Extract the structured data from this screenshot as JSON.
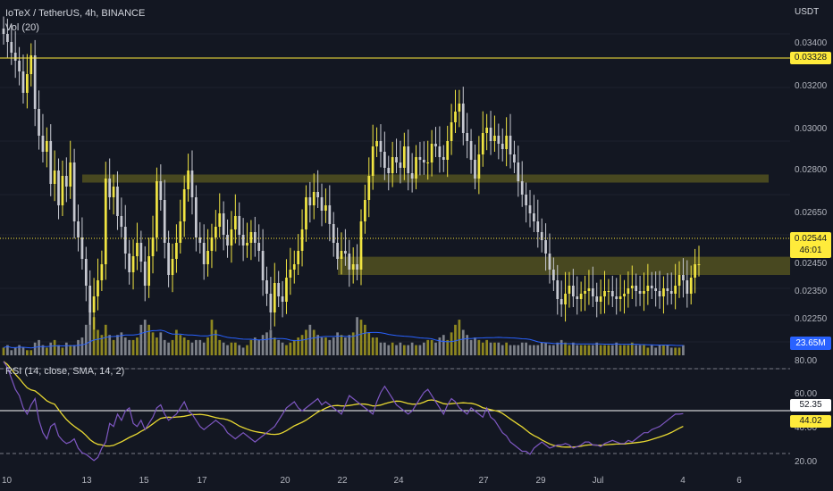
{
  "header": {
    "symbol_line": "IoTeX / TetherUS, 4h, BINANCE",
    "volume_label": "Vol (20)",
    "rsi_label": "RSI (14, close, SMA, 14, 2)",
    "currency": "USDT"
  },
  "price_axis": {
    "ticks": [
      "0.03400",
      "0.03200",
      "0.03000",
      "0.02800",
      "0.02650",
      "0.02450",
      "0.02350",
      "0.02250"
    ]
  },
  "rsi_axis": {
    "ticks": [
      "80.00",
      "60.00",
      "40.00",
      "20.00"
    ]
  },
  "x_axis": {
    "ticks": [
      "10",
      "13",
      "15",
      "17",
      "20",
      "22",
      "24",
      "27",
      "29",
      "Jul",
      "4",
      "6"
    ]
  },
  "tags": {
    "resistance": "0.03328",
    "last_price": "0.02544",
    "countdown": "46:01",
    "volume": "23.65M",
    "rsi": "52.35",
    "rsi_sma": "44.02"
  },
  "colors": {
    "background": "#131722",
    "bull": "#f0e442",
    "bear": "#c7c9d1",
    "zone": "#8a8420",
    "line_yellow": "#ffeb3b",
    "volume_ma": "#2962ff",
    "rsi_line": "#7e57c2"
  },
  "chart_data": {
    "type": "candlestick",
    "symbol": "IoTeX / TetherUS",
    "interval": "4h",
    "exchange": "BINANCE",
    "price_ylim": [
      0.022,
      0.035
    ],
    "rsi_ylim": [
      15,
      90
    ],
    "horizontal_lines": [
      0.03328
    ],
    "zones": [
      [
        0.02875,
        0.02845
      ],
      [
        0.02568,
        0.025
      ]
    ],
    "last_price": 0.02544,
    "closes": [
      0.034,
      0.0337,
      0.0333,
      0.033,
      0.0326,
      0.0318,
      0.0325,
      0.0332,
      0.0312,
      0.0302,
      0.0296,
      0.03,
      0.0284,
      0.0289,
      0.0276,
      0.0287,
      0.0283,
      0.0292,
      0.027,
      0.0264,
      0.0256,
      0.0246,
      0.0236,
      0.0242,
      0.0248,
      0.0254,
      0.0286,
      0.0279,
      0.0283,
      0.0272,
      0.0268,
      0.0258,
      0.0251,
      0.0257,
      0.0262,
      0.0255,
      0.0246,
      0.0257,
      0.0264,
      0.0285,
      0.0278,
      0.0262,
      0.025,
      0.0256,
      0.0262,
      0.027,
      0.0282,
      0.0289,
      0.0279,
      0.0264,
      0.0262,
      0.0254,
      0.0259,
      0.0264,
      0.0268,
      0.0273,
      0.0265,
      0.0261,
      0.0267,
      0.0272,
      0.0265,
      0.0261,
      0.0262,
      0.0266,
      0.0262,
      0.0259,
      0.0248,
      0.0243,
      0.0236,
      0.0247,
      0.0242,
      0.024,
      0.0249,
      0.0252,
      0.0254,
      0.0259,
      0.0267,
      0.0279,
      0.0276,
      0.0281,
      0.0279,
      0.0274,
      0.0276,
      0.0269,
      0.0262,
      0.0256,
      0.0259,
      0.0258,
      0.0252,
      0.0254,
      0.0252,
      0.027,
      0.0278,
      0.0287,
      0.0298,
      0.03,
      0.0296,
      0.029,
      0.0288,
      0.0294,
      0.0292,
      0.029,
      0.0298,
      0.0288,
      0.0286,
      0.0294,
      0.0293,
      0.0292,
      0.0292,
      0.0299,
      0.0298,
      0.0294,
      0.0293,
      0.03,
      0.0307,
      0.0311,
      0.0314,
      0.0303,
      0.03,
      0.0293,
      0.0286,
      0.0295,
      0.0303,
      0.0305,
      0.03,
      0.0302,
      0.0299,
      0.0297,
      0.0302,
      0.0295,
      0.0292,
      0.0285,
      0.028,
      0.0276,
      0.0273,
      0.027,
      0.0266,
      0.0263,
      0.0258,
      0.0252,
      0.0248,
      0.0241,
      0.0239,
      0.0243,
      0.0246,
      0.0242,
      0.0241,
      0.0243,
      0.0244,
      0.0245,
      0.0242,
      0.024,
      0.0242,
      0.0244,
      0.0244,
      0.0242,
      0.0241,
      0.0242,
      0.0243,
      0.0245,
      0.0246,
      0.0244,
      0.0243,
      0.0244,
      0.0246,
      0.0245,
      0.0244,
      0.0242,
      0.0245,
      0.0244,
      0.0243,
      0.0246,
      0.025,
      0.0248,
      0.0243,
      0.0249,
      0.0254,
      0.0254
    ],
    "volume_axis_max": 100,
    "volumes": [
      3,
      4,
      2,
      3,
      4,
      3,
      2,
      2,
      5,
      6,
      4,
      3,
      5,
      6,
      4,
      3,
      5,
      4,
      4,
      6,
      7,
      12,
      20,
      15,
      10,
      8,
      12,
      8,
      6,
      8,
      9,
      7,
      6,
      6,
      7,
      12,
      14,
      12,
      9,
      7,
      9,
      6,
      5,
      6,
      10,
      8,
      7,
      6,
      5,
      6,
      6,
      5,
      7,
      14,
      10,
      6,
      5,
      4,
      5,
      5,
      4,
      3,
      4,
      6,
      7,
      6,
      8,
      9,
      10,
      7,
      6,
      5,
      4,
      5,
      6,
      7,
      8,
      10,
      12,
      10,
      8,
      7,
      7,
      6,
      7,
      9,
      8,
      7,
      8,
      9,
      15,
      14,
      12,
      9,
      7,
      7,
      5,
      5,
      4,
      5,
      4,
      5,
      4,
      4,
      5,
      4,
      4,
      5,
      6,
      6,
      5,
      7,
      8,
      6,
      9,
      12,
      14,
      10,
      8,
      6,
      7,
      6,
      5,
      6,
      5,
      5,
      5,
      4,
      5,
      4,
      4,
      4,
      5,
      5,
      4,
      4,
      4,
      5,
      5,
      4,
      4,
      5,
      6,
      5,
      4,
      5,
      4,
      4,
      4,
      4,
      4,
      5,
      4,
      4,
      4,
      4,
      5,
      4,
      4,
      4,
      5,
      4,
      4,
      4,
      3,
      4,
      3,
      4,
      4,
      4,
      3,
      3,
      3,
      4
    ],
    "rsi": [
      86,
      82,
      75,
      68,
      64,
      56,
      52,
      58,
      62,
      48,
      40,
      36,
      44,
      46,
      38,
      35,
      33,
      34,
      36,
      30,
      27,
      26,
      24,
      22,
      24,
      30,
      34,
      46,
      44,
      52,
      48,
      54,
      56,
      46,
      44,
      48,
      42,
      46,
      50,
      56,
      58,
      52,
      48,
      50,
      52,
      56,
      60,
      54,
      52,
      48,
      44,
      42,
      44,
      46,
      48,
      46,
      44,
      40,
      38,
      36,
      38,
      40,
      38,
      36,
      34,
      36,
      38,
      40,
      42,
      44,
      48,
      52,
      56,
      58,
      60,
      56,
      54,
      56,
      58,
      60,
      62,
      58,
      60,
      58,
      56,
      54,
      52,
      58,
      64,
      62,
      60,
      58,
      56,
      54,
      52,
      60,
      66,
      70,
      66,
      62,
      58,
      56,
      54,
      52,
      54,
      58,
      62,
      66,
      68,
      64,
      60,
      56,
      52,
      58,
      62,
      60,
      56,
      54,
      52,
      56,
      54,
      52,
      50,
      56,
      50,
      48,
      44,
      40,
      38,
      34,
      32,
      30,
      28,
      28,
      26,
      30,
      32,
      34,
      32,
      30,
      31,
      32,
      32,
      33,
      32,
      30,
      31,
      32,
      34,
      34,
      32,
      32,
      31,
      33,
      34,
      35,
      34,
      33,
      33,
      35,
      34,
      36,
      38,
      40,
      40,
      42,
      43,
      44,
      46,
      48,
      50,
      52,
      52,
      52.35
    ],
    "rsi_levels": [
      70,
      50,
      30
    ],
    "current_rsi": 52.35,
    "current_rsi_sma": 44.02
  }
}
